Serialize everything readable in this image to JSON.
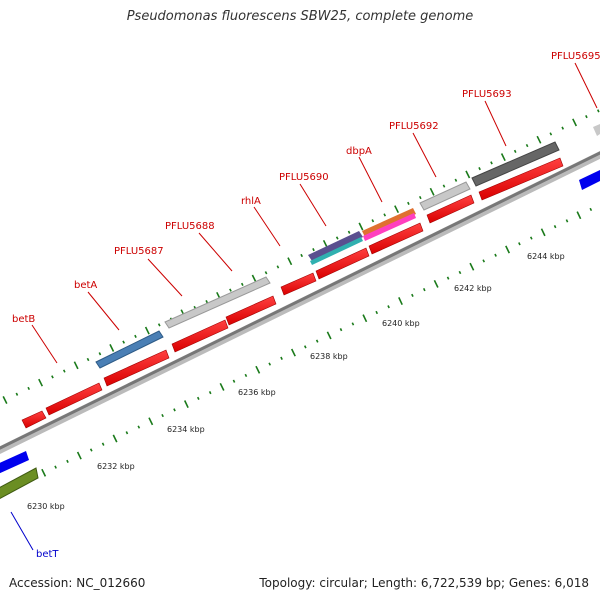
{
  "title": "Pseudomonas fluorescens SBW25, complete genome",
  "accession": "Accession: NC_012660",
  "summary": "Topology: circular; Length: 6,722,539 bp; Genes: 6,018",
  "axis": {
    "ticks": [
      "6230 kbp",
      "6232 kbp",
      "6234 kbp",
      "6236 kbp",
      "6238 kbp",
      "6240 kbp",
      "6242 kbp",
      "6244 kbp"
    ]
  },
  "genes": [
    {
      "label": "betB",
      "color": "#cc0000"
    },
    {
      "label": "betA",
      "color": "#cc0000"
    },
    {
      "label": "PFLU5687",
      "color": "#cc0000"
    },
    {
      "label": "PFLU5688",
      "color": "#cc0000"
    },
    {
      "label": "rhlA",
      "color": "#cc0000"
    },
    {
      "label": "PFLU5690",
      "color": "#cc0000"
    },
    {
      "label": "dbpA",
      "color": "#cc0000"
    },
    {
      "label": "PFLU5692",
      "color": "#cc0000"
    },
    {
      "label": "PFLU5693",
      "color": "#cc0000"
    },
    {
      "label": "PFLU5695",
      "color": "#cc0000"
    },
    {
      "label": "betT",
      "color": "#0000cc"
    }
  ]
}
